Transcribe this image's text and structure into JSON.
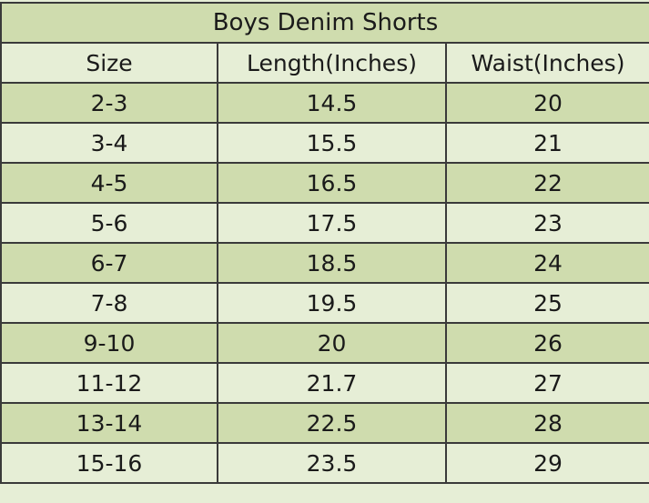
{
  "title": "Boys Denim Shorts",
  "headers": [
    "Size",
    "Length(Inches)",
    "Waist(Inches)"
  ],
  "rows": [
    [
      "2-3",
      "14.5",
      "20"
    ],
    [
      "3-4",
      "15.5",
      "21"
    ],
    [
      "4-5",
      "16.5",
      "22"
    ],
    [
      "5-6",
      "17.5",
      "23"
    ],
    [
      "6-7",
      "18.5",
      "24"
    ],
    [
      "7-8",
      "19.5",
      "25"
    ],
    [
      "9-10",
      "20",
      "26"
    ],
    [
      "11-12",
      "21.7",
      "27"
    ],
    [
      "13-14",
      "22.5",
      "28"
    ],
    [
      "15-16",
      "23.5",
      "29"
    ]
  ],
  "colors": {
    "dark_row": "#cfdcae",
    "light_row": "#e6eed6",
    "border": "#3a3a3a"
  }
}
